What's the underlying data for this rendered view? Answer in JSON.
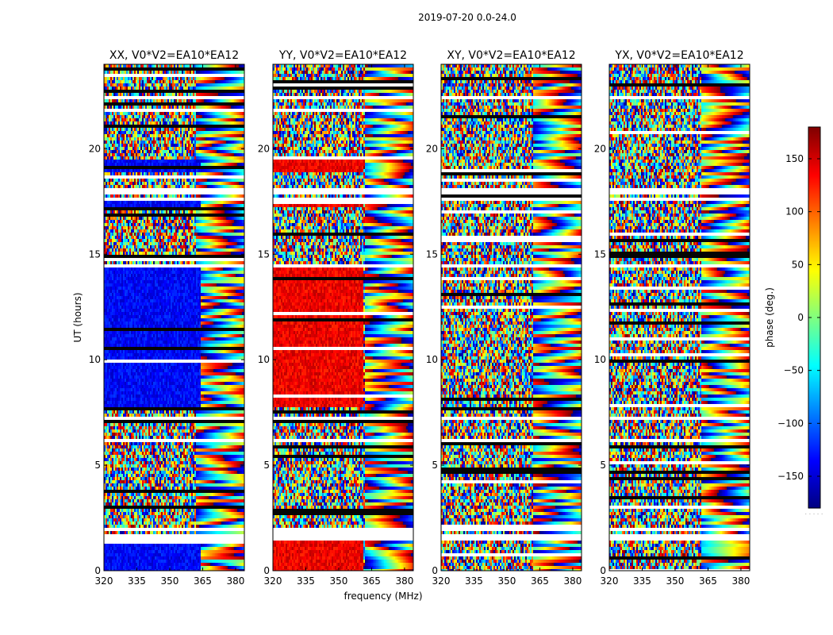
{
  "suptitle": "2019-07-20 0.0-24.0",
  "chart_data": {
    "type": "heatmap",
    "xlabel": "frequency (MHz)",
    "ylabel": "UT (hours)",
    "xlim": [
      320,
      384
    ],
    "ylim": [
      0,
      24
    ],
    "xticks": [
      320,
      335,
      350,
      365,
      380
    ],
    "yticks": [
      0,
      5,
      10,
      15,
      20
    ],
    "panels": [
      {
        "title": "XX, V0*V2=EA10*EA12",
        "pol": "XX",
        "base_phase": -135,
        "coherent_below_mhz": 364
      },
      {
        "title": "YY, V0*V2=EA10*EA12",
        "pol": "YY",
        "base_phase": 140,
        "coherent_below_mhz": 361
      },
      {
        "title": "XY, V0*V2=EA10*EA12",
        "pol": "XY",
        "base_phase": null,
        "coherent_below_mhz": null
      },
      {
        "title": "YX, V0*V2=EA10*EA12",
        "pol": "YX",
        "base_phase": null,
        "coherent_below_mhz": null
      }
    ],
    "colorbar": {
      "label": "phase (deg.)",
      "range": [
        -180,
        180
      ],
      "ticks": [
        -150,
        -100,
        -50,
        0,
        50,
        100,
        150
      ],
      "colormap": "jet"
    },
    "coherent_time_ranges_hours": [
      [
        0,
        1.4
      ],
      [
        7.8,
        14.3
      ],
      [
        17.2,
        17.6
      ],
      [
        18.9,
        19.5
      ]
    ],
    "flagged_gaps_hours": [
      [
        0.35,
        0.42
      ],
      [
        1.4,
        1.72
      ],
      [
        1.95,
        2.0
      ],
      [
        3.55,
        3.6
      ],
      [
        3.8,
        3.85
      ],
      [
        6.05,
        6.2
      ],
      [
        7.2,
        7.3
      ],
      [
        14.3,
        14.5
      ],
      [
        17.6,
        17.75
      ],
      [
        17.9,
        18.1
      ],
      [
        22.3,
        22.5
      ]
    ]
  }
}
